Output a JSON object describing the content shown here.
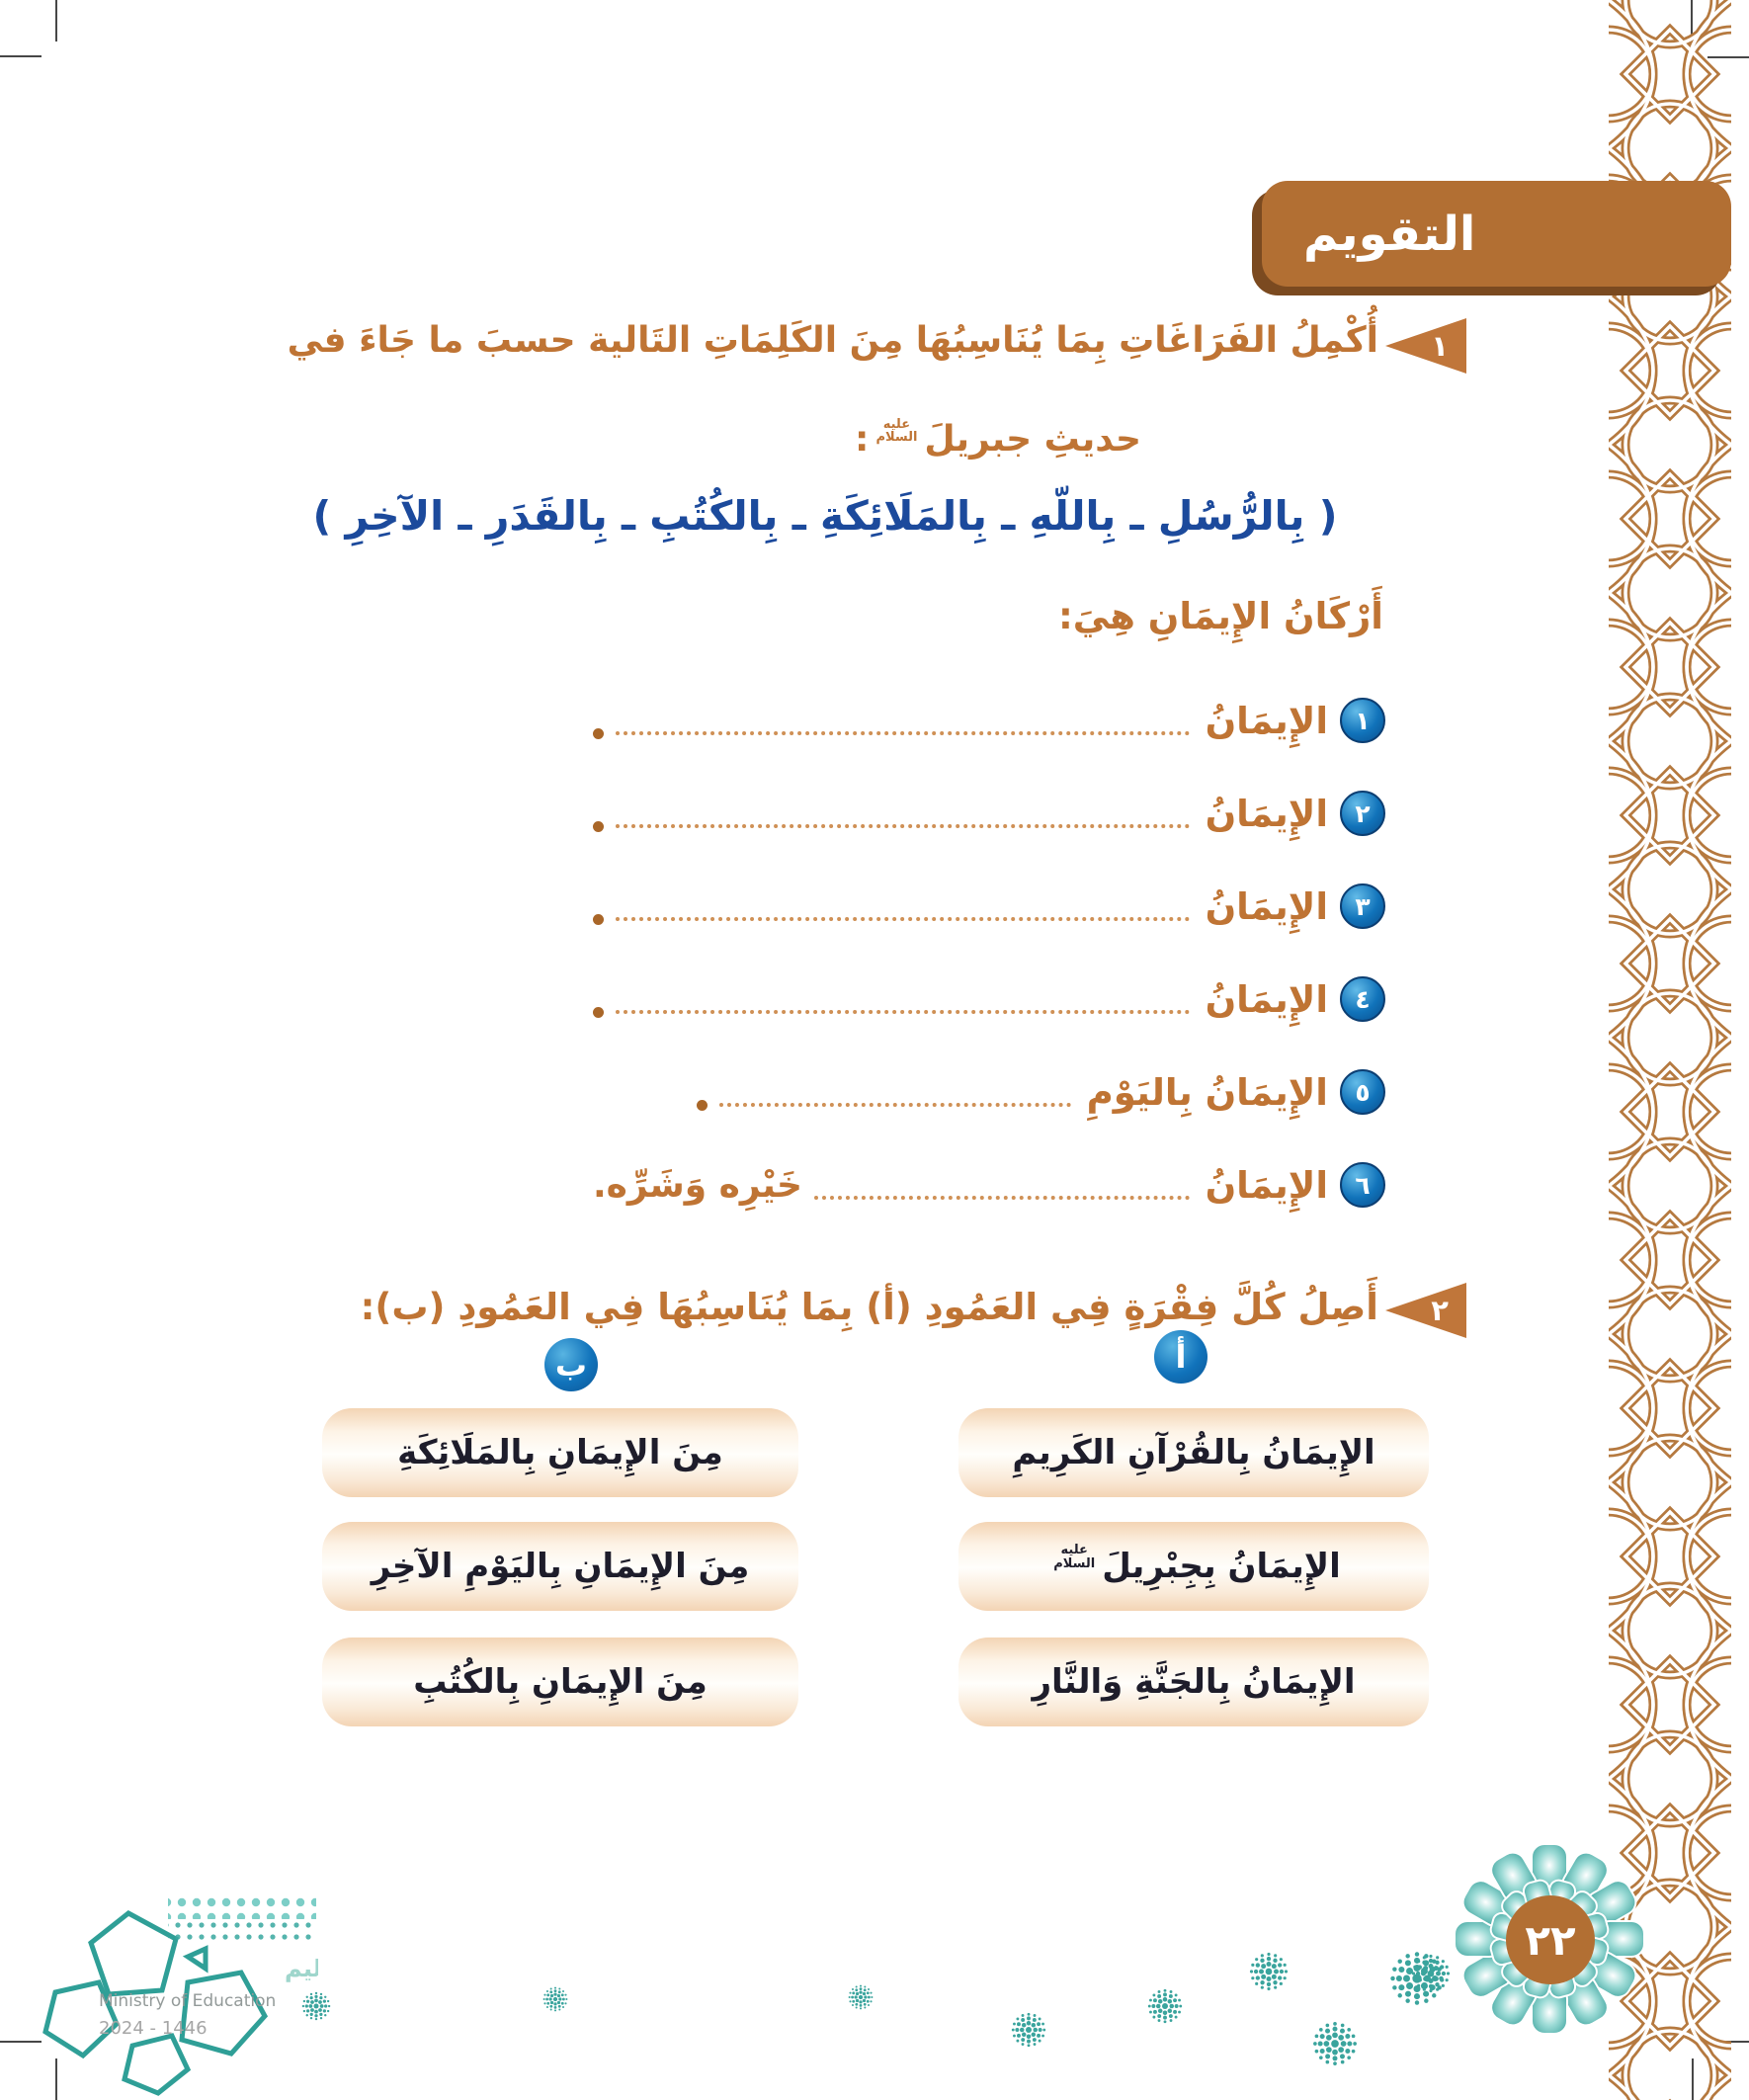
{
  "header": {
    "title": "التقويم"
  },
  "honorifics": {
    "alayhi_salam": {
      "line1": "عليه",
      "line2": "السلام"
    }
  },
  "q1": {
    "number": "١",
    "prompt_line1": "أُكْمِلُ الفَرَاغَاتِ بِمَا يُنَاسِبُهَا مِنَ الكَلِمَاتِ التَالية حسبَ ما جَاءَ في",
    "prompt_line2": "حديثِ جبريلَ",
    "colon": ":",
    "word_bank": "( بِالرُّسُلِ ـ بِاللّهِ ـ بِالمَلَائِكَةِ ـ بِالكُتُبِ ـ بِالقَدَرِ ـ الآخِرِ )",
    "lead_in": "أَرْكَانُ الإِيمَانِ هِيَ:",
    "items": [
      {
        "num": "١",
        "label": "الإِيمَانُ",
        "suffix": ""
      },
      {
        "num": "٢",
        "label": "الإِيمَانُ",
        "suffix": ""
      },
      {
        "num": "٣",
        "label": "الإِيمَانُ",
        "suffix": ""
      },
      {
        "num": "٤",
        "label": "الإِيمَانُ",
        "suffix": ""
      },
      {
        "num": "٥",
        "label": "الإِيمَانُ بِاليَوْمِ",
        "suffix": ""
      },
      {
        "num": "٦",
        "label": "الإِيمَانُ",
        "suffix": "خَيْرِه وَشَرِّه."
      }
    ]
  },
  "q2": {
    "number": "٢",
    "prompt": "أَصِلُ كُلَّ فِقْرَةٍ فِي العَمُودِ (أ) بِمَا يُنَاسِبُهَا فِي العَمُودِ (ب):",
    "column_a": {
      "label": "أ",
      "items": [
        "الإِيمَانُ بِالقُرْآنِ الكَرِيمِ",
        "الإِيمَانُ بِجِبْرِيلَ",
        "الإِيمَانُ بِالجَنَّةِ وَالنَّارِ"
      ]
    },
    "column_b": {
      "label": "ب",
      "items": [
        "مِنَ الإِيمَانِ بِالمَلَائِكَةِ",
        "مِنَ الإِيمَانِ بِاليَوْمِ الآخِرِ",
        "مِنَ الإِيمَانِ بِالكُتُبِ"
      ]
    }
  },
  "footer": {
    "page_number": "٢٢",
    "ministry_logo": {
      "arabic": "وزارة التعليم",
      "english": "Ministry of Education",
      "years": "2024 - 1446"
    }
  },
  "colors": {
    "header_brown": "#b26f33",
    "header_brown_shadow": "#7b4a20",
    "text_brown": "#bf7434",
    "text_blue": "#1c4a9c",
    "badge_blue": "#0f6cb4",
    "box_text": "#1e1d2b",
    "box_peach": "#f3d4b4",
    "teal": "#35a79f",
    "leader_dots": "#cf9055",
    "border_pattern": "#b5793f"
  }
}
